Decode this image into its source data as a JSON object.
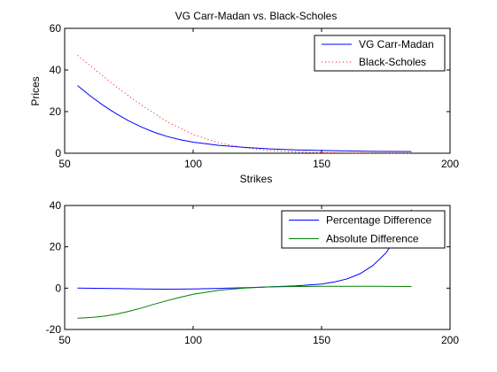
{
  "chart_data": [
    {
      "type": "line",
      "title": "VG Carr-Madan vs. Black-Scholes",
      "xlabel": "Strikes",
      "ylabel": "Prices",
      "xlim": [
        50,
        200
      ],
      "ylim": [
        0,
        60
      ],
      "xticks": [
        50,
        100,
        150,
        200
      ],
      "yticks": [
        0,
        20,
        40,
        60
      ],
      "legend_position": "top-right",
      "grid": false,
      "series": [
        {
          "name": "VG Carr-Madan",
          "color": "#0000ff",
          "style": "solid",
          "x": [
            55,
            60,
            65,
            70,
            75,
            80,
            85,
            90,
            95,
            100,
            110,
            120,
            130,
            140,
            150,
            160,
            170,
            185
          ],
          "y": [
            32.5,
            27.5,
            23.0,
            19.0,
            15.5,
            12.5,
            10.0,
            8.0,
            6.5,
            5.3,
            3.8,
            2.8,
            2.1,
            1.6,
            1.3,
            1.1,
            0.9,
            0.8
          ]
        },
        {
          "name": "Black-Scholes",
          "color": "#ff0000",
          "style": "dotted",
          "x": [
            55,
            60,
            65,
            70,
            75,
            80,
            85,
            90,
            95,
            100,
            110,
            120,
            130,
            140,
            150,
            160,
            170,
            185
          ],
          "y": [
            47.0,
            42.0,
            37.0,
            32.0,
            27.5,
            23.0,
            19.0,
            15.0,
            12.0,
            9.0,
            5.0,
            2.6,
            1.3,
            0.6,
            0.3,
            0.1,
            0.05,
            0.02
          ]
        }
      ]
    },
    {
      "type": "line",
      "title": "",
      "xlabel": "",
      "ylabel": "",
      "xlim": [
        50,
        200
      ],
      "ylim": [
        -20,
        40
      ],
      "xticks": [
        50,
        100,
        150,
        200
      ],
      "yticks": [
        -20,
        0,
        20,
        40
      ],
      "legend_position": "top-right",
      "grid": false,
      "series": [
        {
          "name": "Percentage Difference",
          "color": "#0000ff",
          "style": "solid",
          "x": [
            55,
            70,
            80,
            90,
            100,
            110,
            120,
            130,
            140,
            150,
            155,
            160,
            165,
            170,
            175,
            180,
            185
          ],
          "y": [
            0,
            -0.2,
            -0.4,
            -0.5,
            -0.4,
            -0.1,
            0.2,
            0.6,
            1.1,
            2.0,
            3.0,
            4.5,
            7.0,
            11.0,
            17.0,
            26.0,
            38.0
          ]
        },
        {
          "name": "Absolute Difference",
          "color": "#008000",
          "style": "solid",
          "x": [
            55,
            60,
            65,
            70,
            75,
            80,
            85,
            90,
            95,
            100,
            110,
            120,
            130,
            140,
            150,
            160,
            170,
            185
          ],
          "y": [
            -14.5,
            -14.2,
            -13.6,
            -12.6,
            -11.2,
            -9.6,
            -7.7,
            -6.0,
            -4.4,
            -3.0,
            -1.0,
            0.0,
            0.6,
            0.8,
            0.9,
            0.9,
            0.9,
            0.8
          ]
        }
      ]
    }
  ]
}
